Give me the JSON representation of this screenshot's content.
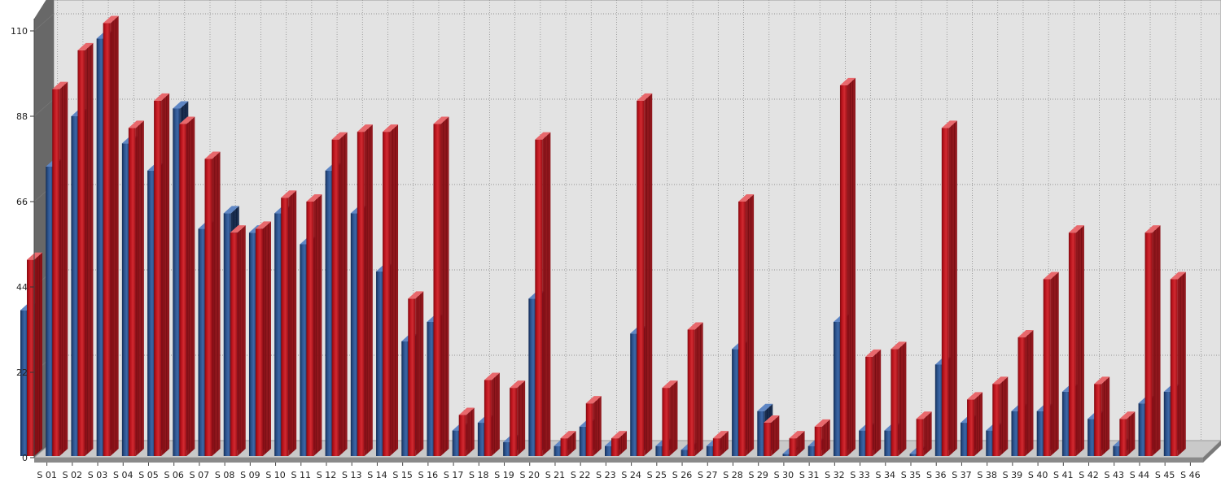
{
  "chart_data": {
    "type": "bar",
    "title": "",
    "xlabel": "",
    "ylabel": "",
    "ylim": [
      0,
      110
    ],
    "yticks": [
      0,
      22,
      44,
      66,
      88,
      110
    ],
    "grid": true,
    "categories": [
      "S 01",
      "S 02",
      "S 03",
      "S 04",
      "S 05",
      "S 06",
      "S 07",
      "S 08",
      "S 09",
      "S 10",
      "S 11",
      "S 12",
      "S 13",
      "S 14",
      "S 15",
      "S 16",
      "S 17",
      "S 18",
      "S 19",
      "S 20",
      "S 21",
      "S 22",
      "S 23",
      "S 24",
      "S 25",
      "S 26",
      "S 27",
      "S 28",
      "S 29",
      "S 30",
      "S 31",
      "S 32",
      "S 33",
      "S 34",
      "S 35",
      "S 36",
      "S 37",
      "S 38",
      "S 39",
      "S 40",
      "S 41",
      "S 42",
      "S 43",
      "S 44",
      "S 45",
      "S 46"
    ],
    "series": [
      {
        "color": "#2f5a98",
        "values": [
          38,
          75,
          88,
          108,
          81,
          74,
          90,
          59,
          63,
          58,
          63,
          55,
          74,
          63,
          48,
          30,
          35,
          7,
          9,
          4,
          41,
          3,
          8,
          3,
          32,
          3,
          2,
          3,
          28,
          12,
          1,
          3,
          35,
          7,
          7,
          1,
          24,
          9,
          7,
          12,
          12,
          17,
          10,
          3,
          14,
          17
        ]
      },
      {
        "color": "#c11a22",
        "values": [
          51,
          95,
          105,
          112,
          85,
          92,
          86,
          77,
          58,
          59,
          67,
          66,
          82,
          84,
          84,
          41,
          86,
          11,
          20,
          18,
          82,
          5,
          14,
          5,
          92,
          18,
          33,
          5,
          66,
          9,
          5,
          8,
          96,
          26,
          28,
          10,
          85,
          15,
          19,
          31,
          46,
          58,
          19,
          10,
          58,
          46
        ]
      }
    ]
  }
}
